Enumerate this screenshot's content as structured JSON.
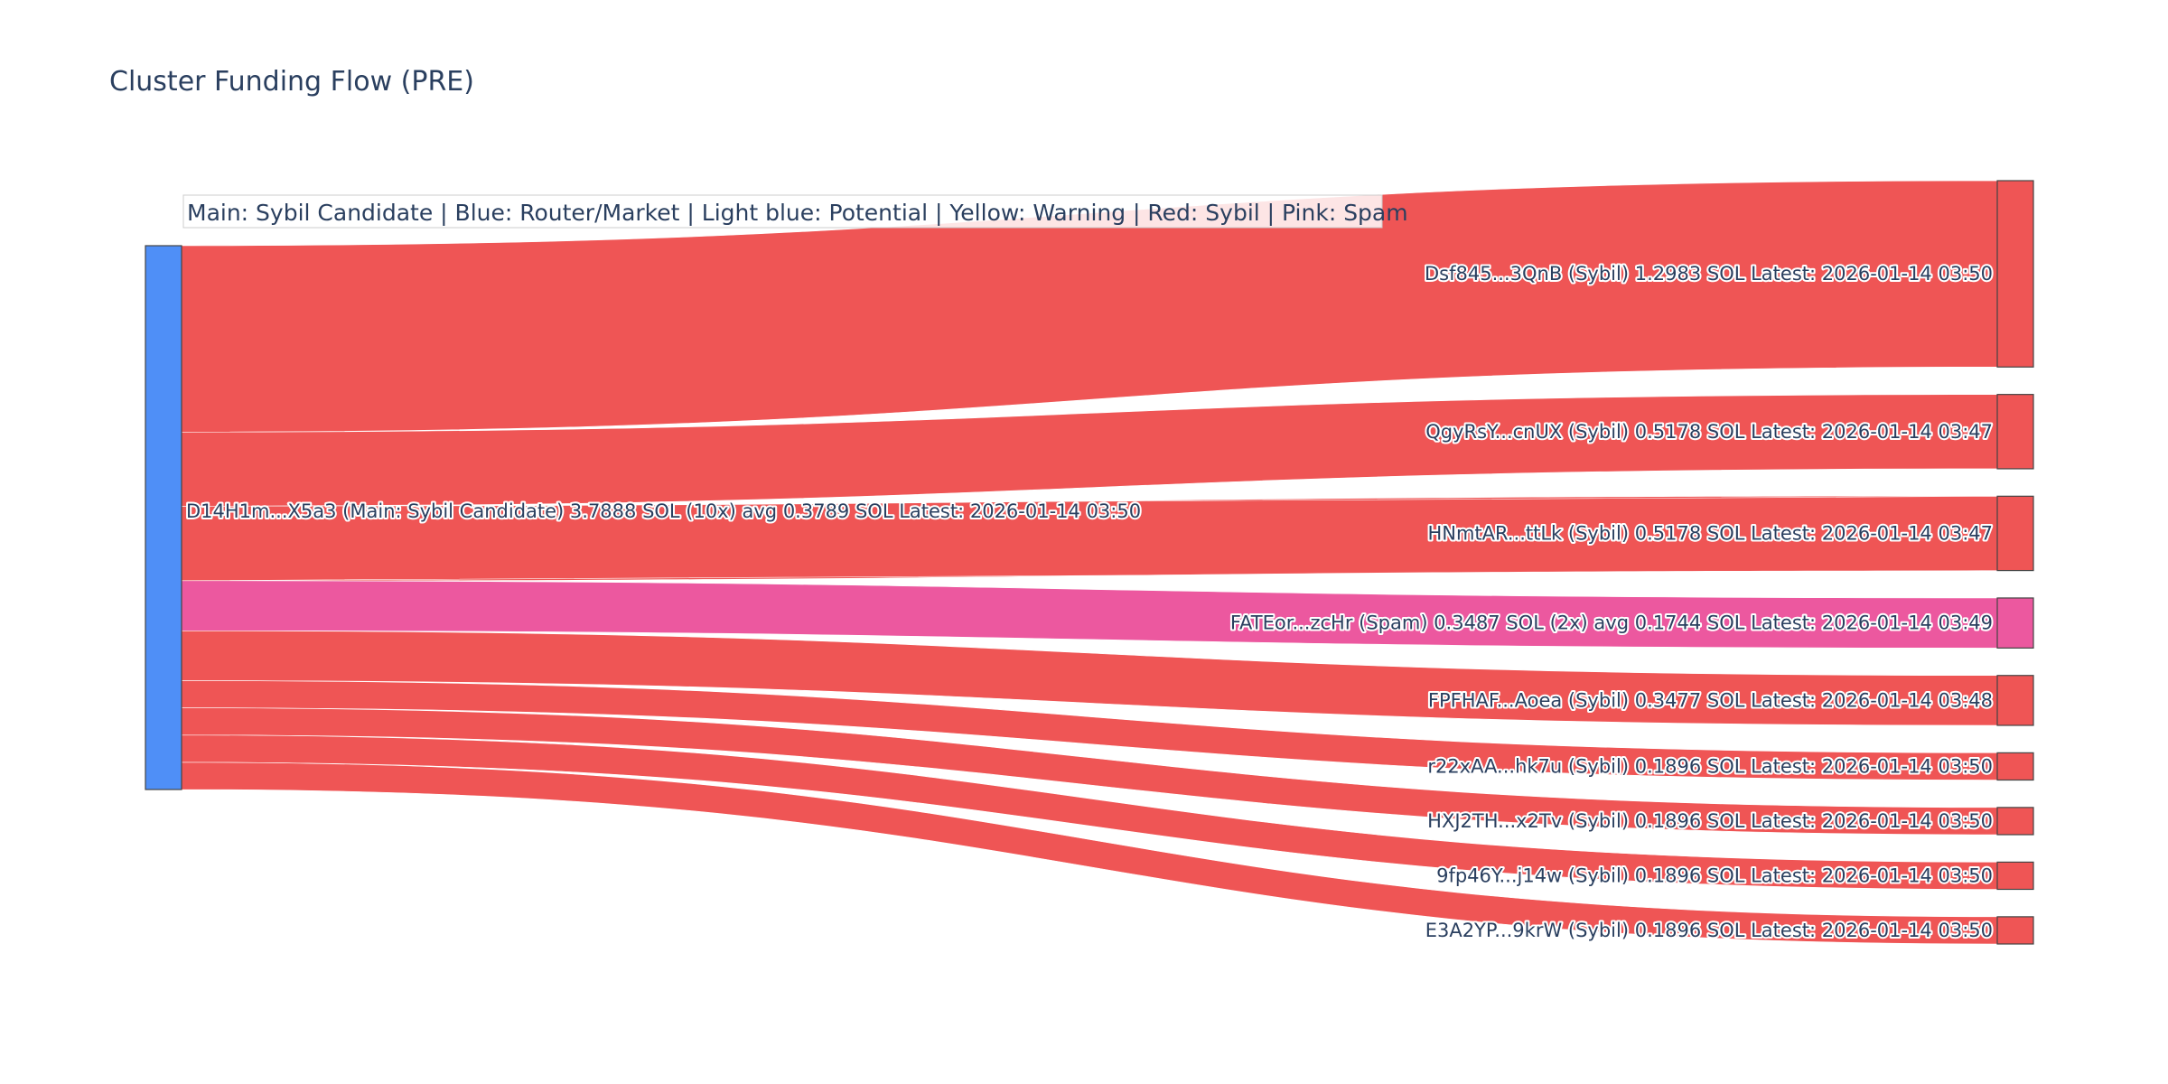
{
  "chart_data": {
    "type": "sankey",
    "title": "Cluster Funding Flow (PRE)",
    "legend_note": "Main: Sybil Candidate  |  Blue: Router/Market | Light blue: Potential | Yellow: Warning | Red: Sybil | Pink: Spam",
    "colors": {
      "router": "#4f8ff7",
      "sybil": "#ef5555",
      "spam": "#ec589f",
      "node_outline": "#444444"
    },
    "source": {
      "label": "D14H1m...X5a3 (Main: Sybil Candidate) 3.7888 SOL (10x) avg 0.3789 SOL Latest: 2026-01-14 03:50",
      "category": "router",
      "total_sol": 3.7888
    },
    "targets": [
      {
        "label": "Dsf845...3QnB (Sybil) 1.2983 SOL Latest: 2026-01-14 03:50",
        "category": "sybil",
        "value": 1.2983
      },
      {
        "label": "QgyRsY...cnUX (Sybil) 0.5178 SOL Latest: 2026-01-14 03:47",
        "category": "sybil",
        "value": 0.5178
      },
      {
        "label": "HNmtAR...ttLk (Sybil) 0.5178 SOL Latest: 2026-01-14 03:47",
        "category": "sybil",
        "value": 0.5178
      },
      {
        "label": "FATEor...zcHr (Spam) 0.3487 SOL (2x) avg 0.1744 SOL Latest: 2026-01-14 03:49",
        "category": "spam",
        "value": 0.3487
      },
      {
        "label": "FPFHAF...Aoea (Sybil) 0.3477 SOL Latest: 2026-01-14 03:48",
        "category": "sybil",
        "value": 0.3477
      },
      {
        "label": "r22xAA...hk7u (Sybil) 0.1896 SOL Latest: 2026-01-14 03:50",
        "category": "sybil",
        "value": 0.1896
      },
      {
        "label": "HXJ2TH...x2Tv (Sybil) 0.1896 SOL Latest: 2026-01-14 03:50",
        "category": "sybil",
        "value": 0.1896
      },
      {
        "label": "9fp46Y...j14w (Sybil) 0.1896 SOL Latest: 2026-01-14 03:50",
        "category": "sybil",
        "value": 0.1896
      },
      {
        "label": "E3A2YP...9krW (Sybil) 0.1896 SOL Latest: 2026-01-14 03:50",
        "category": "sybil",
        "value": 0.1896
      }
    ]
  }
}
